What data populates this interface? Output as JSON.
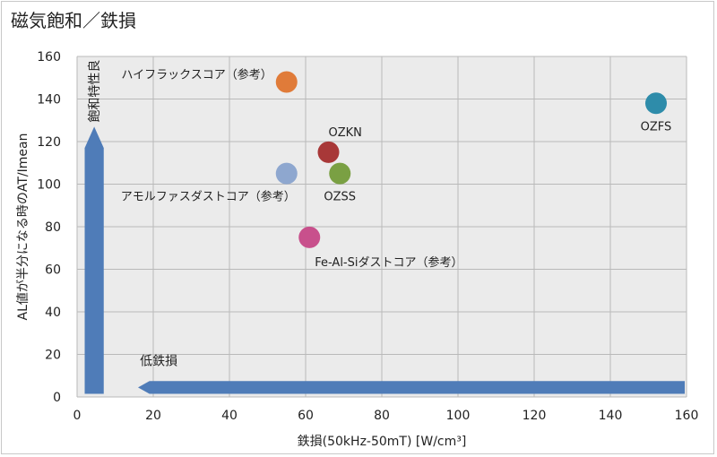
{
  "chart_data": {
    "type": "scatter",
    "title": "磁気飽和／鉄損",
    "xlabel": "鉄損(50kHz-50mT) [W/cm³]",
    "ylabel": "AL値が半分になる時のAT/Imean",
    "xlim": [
      0,
      160
    ],
    "ylim": [
      0,
      160
    ],
    "xticks": [
      0,
      20,
      40,
      60,
      80,
      100,
      120,
      140,
      160
    ],
    "yticks": [
      0,
      20,
      40,
      60,
      80,
      100,
      120,
      140,
      160
    ],
    "grid": true,
    "points": [
      {
        "label": "ハイフラックスコア（参考）",
        "x": 55,
        "y": 148,
        "color": "#E07B39",
        "label_pos": "left-up"
      },
      {
        "label": "OZKN",
        "x": 66,
        "y": 115,
        "color": "#A83838",
        "label_pos": "above-right"
      },
      {
        "label": "アモルファスダストコア（参考）",
        "x": 55,
        "y": 105,
        "color": "#8EA7CF",
        "label_pos": "below-left"
      },
      {
        "label": "OZSS",
        "x": 69,
        "y": 105,
        "color": "#7AA043",
        "label_pos": "below"
      },
      {
        "label": "Fe-Al-Siダストコア（参考）",
        "x": 61,
        "y": 75,
        "color": "#C8508C",
        "label_pos": "below-right"
      },
      {
        "label": "OZFS",
        "x": 152,
        "y": 138,
        "color": "#2E8CAA",
        "label_pos": "below"
      }
    ],
    "annotations": {
      "vertical_arrow_label": "飽和特性良",
      "horizontal_arrow_label": "低鉄損",
      "arrow_color": "#4F7CB8"
    }
  }
}
